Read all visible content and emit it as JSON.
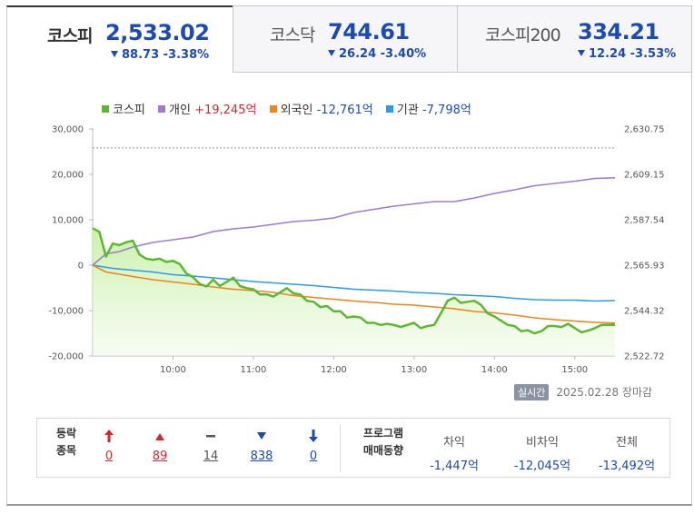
{
  "tabs": [
    {
      "name": "코스피",
      "value": "2,533.02",
      "change": "88.73",
      "rate": "-3.38%"
    },
    {
      "name": "코스닥",
      "value": "744.61",
      "change": "26.24",
      "rate": "-3.40%"
    },
    {
      "name": "코스피200",
      "value": "334.21",
      "change": "12.24",
      "rate": "-3.53%"
    }
  ],
  "legend": [
    {
      "label": "코스피",
      "value": "",
      "color": "#5cb82e"
    },
    {
      "label": "개인",
      "value": "+19,245억",
      "color": "#a07ad0"
    },
    {
      "label": "외국인",
      "value": "-12,761억",
      "color": "#f0831b"
    },
    {
      "label": "기관",
      "value": "-7,798억",
      "color": "#2b9bea"
    }
  ],
  "timestamp": {
    "badge": "실시간",
    "date": "2025.02.28",
    "status": "장마감"
  },
  "breadth": {
    "label_line1": "등락",
    "label_line2": "종목",
    "items": [
      {
        "icon": "upper-limit-arrow-icon",
        "value": "0",
        "color": "#d6252b"
      },
      {
        "icon": "rise-triangle-icon",
        "value": "89",
        "color": "#d6252b"
      },
      {
        "icon": "flat-dash-icon",
        "value": "14",
        "color": "#555555"
      },
      {
        "icon": "fall-triangle-icon",
        "value": "838",
        "color": "#1b4ab3"
      },
      {
        "icon": "lower-limit-arrow-icon",
        "value": "0",
        "color": "#1b4ab3"
      }
    ]
  },
  "program": {
    "label_line1": "프로그램",
    "label_line2": "매매동향",
    "columns": [
      {
        "header": "차익",
        "value": "-1,447억"
      },
      {
        "header": "비차익",
        "value": "-12,045억"
      },
      {
        "header": "전체",
        "value": "-13,492억"
      }
    ]
  },
  "chart_data": {
    "type": "line",
    "x_ticks": [
      "10:00",
      "11:00",
      "12:00",
      "13:00",
      "14:00",
      "15:00"
    ],
    "x_range": [
      "09:00",
      "15:30"
    ],
    "left_axis": {
      "ticks": [
        "30,000",
        "20,000",
        "10,000",
        "0",
        "-10,000",
        "-20,000"
      ],
      "range": [
        -20000,
        30000
      ],
      "unit": "억"
    },
    "right_axis": {
      "ticks": [
        "2,630.75",
        "2,609.15",
        "2,587.54",
        "2,565.93",
        "2,544.32",
        "2,522.72"
      ],
      "range": [
        2522.72,
        2630.75
      ]
    },
    "reference_line": {
      "axis": "right",
      "value": 2621.75,
      "style": "dashed"
    },
    "series": [
      {
        "name": "코스피",
        "axis": "right",
        "color": "#5cb82e",
        "area": true,
        "points": [
          [
            "09:00",
            2583.5
          ],
          [
            "09:05",
            2581.8
          ],
          [
            "09:10",
            2570.0
          ],
          [
            "09:15",
            2576.2
          ],
          [
            "09:20",
            2575.5
          ],
          [
            "09:25",
            2576.8
          ],
          [
            "09:30",
            2577.6
          ],
          [
            "09:35",
            2571.0
          ],
          [
            "09:40",
            2569.0
          ],
          [
            "09:45",
            2568.5
          ],
          [
            "09:50",
            2569.0
          ],
          [
            "09:55",
            2567.5
          ],
          [
            "10:00",
            2568.0
          ],
          [
            "10:05",
            2566.5
          ],
          [
            "10:10",
            2562.0
          ],
          [
            "10:15",
            2560.2
          ],
          [
            "10:20",
            2557.0
          ],
          [
            "10:25",
            2555.8
          ],
          [
            "10:30",
            2559.0
          ],
          [
            "10:35",
            2556.0
          ],
          [
            "10:40",
            2558.0
          ],
          [
            "10:45",
            2560.0
          ],
          [
            "10:50",
            2556.0
          ],
          [
            "10:55",
            2555.0
          ],
          [
            "11:00",
            2554.5
          ],
          [
            "11:05",
            2552.0
          ],
          [
            "11:10",
            2552.0
          ],
          [
            "11:15",
            2551.0
          ],
          [
            "11:20",
            2553.0
          ],
          [
            "11:25",
            2555.0
          ],
          [
            "11:30",
            2552.5
          ],
          [
            "11:35",
            2552.0
          ],
          [
            "11:40",
            2549.0
          ],
          [
            "11:45",
            2548.5
          ],
          [
            "11:50",
            2546.0
          ],
          [
            "11:55",
            2546.5
          ],
          [
            "12:00",
            2544.0
          ],
          [
            "12:05",
            2544.0
          ],
          [
            "12:10",
            2541.0
          ],
          [
            "12:15",
            2541.5
          ],
          [
            "12:20",
            2541.0
          ],
          [
            "12:25",
            2538.5
          ],
          [
            "12:30",
            2538.5
          ],
          [
            "12:35",
            2537.5
          ],
          [
            "12:40",
            2538.0
          ],
          [
            "12:45",
            2537.5
          ],
          [
            "12:50",
            2536.5
          ],
          [
            "12:55",
            2537.5
          ],
          [
            "13:00",
            2538.5
          ],
          [
            "13:05",
            2536.0
          ],
          [
            "13:10",
            2537.0
          ],
          [
            "13:15",
            2537.5
          ],
          [
            "13:20",
            2543.0
          ],
          [
            "13:25",
            2549.0
          ],
          [
            "13:30",
            2550.5
          ],
          [
            "13:35",
            2548.0
          ],
          [
            "13:40",
            2548.5
          ],
          [
            "13:45",
            2549.0
          ],
          [
            "13:50",
            2547.0
          ],
          [
            "13:55",
            2543.0
          ],
          [
            "14:00",
            2541.5
          ],
          [
            "14:05",
            2539.5
          ],
          [
            "14:10",
            2537.5
          ],
          [
            "14:15",
            2537.0
          ],
          [
            "14:20",
            2534.5
          ],
          [
            "14:25",
            2535.0
          ],
          [
            "14:30",
            2533.5
          ],
          [
            "14:35",
            2534.5
          ],
          [
            "14:40",
            2537.0
          ],
          [
            "14:45",
            2537.0
          ],
          [
            "14:50",
            2536.5
          ],
          [
            "14:55",
            2538.0
          ],
          [
            "15:00",
            2536.0
          ],
          [
            "15:05",
            2534.0
          ],
          [
            "15:10",
            2534.8
          ],
          [
            "15:15",
            2536.0
          ],
          [
            "15:20",
            2537.5
          ],
          [
            "15:30",
            2537.5
          ]
        ]
      },
      {
        "name": "개인",
        "axis": "left",
        "color": "#a07ad0",
        "points": [
          [
            "09:00",
            0
          ],
          [
            "09:10",
            2500
          ],
          [
            "09:20",
            3000
          ],
          [
            "09:30",
            4000
          ],
          [
            "09:45",
            5000
          ],
          [
            "10:00",
            5600
          ],
          [
            "10:15",
            6200
          ],
          [
            "10:30",
            7400
          ],
          [
            "10:45",
            8000
          ],
          [
            "11:00",
            8400
          ],
          [
            "11:15",
            9000
          ],
          [
            "11:30",
            9600
          ],
          [
            "11:45",
            9900
          ],
          [
            "12:00",
            10400
          ],
          [
            "12:15",
            11600
          ],
          [
            "12:30",
            12300
          ],
          [
            "12:45",
            13000
          ],
          [
            "13:00",
            13500
          ],
          [
            "13:15",
            14000
          ],
          [
            "13:30",
            14000
          ],
          [
            "13:45",
            14800
          ],
          [
            "14:00",
            15800
          ],
          [
            "14:15",
            16600
          ],
          [
            "14:30",
            17500
          ],
          [
            "14:45",
            18000
          ],
          [
            "15:00",
            18500
          ],
          [
            "15:15",
            19100
          ],
          [
            "15:30",
            19245
          ]
        ]
      },
      {
        "name": "외국인",
        "axis": "left",
        "color": "#f0831b",
        "points": [
          [
            "09:00",
            0
          ],
          [
            "09:10",
            -1500
          ],
          [
            "09:20",
            -2000
          ],
          [
            "09:30",
            -2500
          ],
          [
            "09:45",
            -3200
          ],
          [
            "10:00",
            -3700
          ],
          [
            "10:15",
            -4200
          ],
          [
            "10:30",
            -4800
          ],
          [
            "10:45",
            -5300
          ],
          [
            "11:00",
            -5600
          ],
          [
            "11:15",
            -6000
          ],
          [
            "11:30",
            -6700
          ],
          [
            "11:45",
            -7100
          ],
          [
            "12:00",
            -7500
          ],
          [
            "12:15",
            -7900
          ],
          [
            "12:30",
            -8200
          ],
          [
            "12:45",
            -8600
          ],
          [
            "13:00",
            -8800
          ],
          [
            "13:15",
            -9200
          ],
          [
            "13:30",
            -9600
          ],
          [
            "13:45",
            -10200
          ],
          [
            "14:00",
            -10500
          ],
          [
            "14:15",
            -11000
          ],
          [
            "14:30",
            -11600
          ],
          [
            "14:45",
            -12000
          ],
          [
            "15:00",
            -12300
          ],
          [
            "15:15",
            -12600
          ],
          [
            "15:30",
            -12761
          ]
        ]
      },
      {
        "name": "기관",
        "axis": "left",
        "color": "#2b9bea",
        "points": [
          [
            "09:00",
            0
          ],
          [
            "09:15",
            -700
          ],
          [
            "09:30",
            -1100
          ],
          [
            "09:45",
            -1500
          ],
          [
            "10:00",
            -2100
          ],
          [
            "10:15",
            -2400
          ],
          [
            "10:30",
            -2800
          ],
          [
            "10:45",
            -3200
          ],
          [
            "11:00",
            -3600
          ],
          [
            "11:15",
            -3900
          ],
          [
            "11:30",
            -4200
          ],
          [
            "11:45",
            -4500
          ],
          [
            "12:00",
            -4900
          ],
          [
            "12:15",
            -5300
          ],
          [
            "12:30",
            -5500
          ],
          [
            "12:45",
            -5700
          ],
          [
            "13:00",
            -6000
          ],
          [
            "13:15",
            -6200
          ],
          [
            "13:30",
            -6500
          ],
          [
            "13:45",
            -6700
          ],
          [
            "14:00",
            -6900
          ],
          [
            "14:15",
            -7300
          ],
          [
            "14:30",
            -7600
          ],
          [
            "14:45",
            -7700
          ],
          [
            "15:00",
            -7700
          ],
          [
            "15:15",
            -7900
          ],
          [
            "15:30",
            -7798
          ]
        ]
      }
    ]
  }
}
